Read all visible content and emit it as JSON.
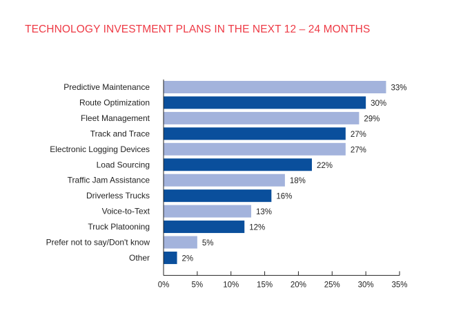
{
  "chart_data": {
    "type": "bar",
    "orientation": "horizontal",
    "title": "TECHNOLOGY INVESTMENT PLANS IN THE NEXT 12 – 24 MONTHS",
    "xlabel": "",
    "ylabel": "",
    "xlim": [
      0,
      35
    ],
    "xticks": [
      0,
      5,
      10,
      15,
      20,
      25,
      30,
      35
    ],
    "xtick_labels": [
      "0%",
      "5%",
      "10%",
      "15%",
      "20%",
      "25%",
      "30%",
      "35%"
    ],
    "grid": false,
    "legend": null,
    "categories": [
      "Predictive Maintenance",
      "Route Optimization",
      "Fleet Management",
      "Track and Trace",
      "Electronic Logging Devices",
      "Load Sourcing",
      "Traffic Jam Assistance",
      "Driverless Trucks",
      "Voice-to-Text",
      "Truck Platooning",
      "Prefer not to say/Don't know",
      "Other"
    ],
    "values": [
      33,
      30,
      29,
      27,
      27,
      22,
      18,
      16,
      13,
      12,
      5,
      2
    ],
    "value_labels": [
      "33%",
      "30%",
      "29%",
      "27%",
      "27%",
      "22%",
      "18%",
      "16%",
      "13%",
      "12%",
      "5%",
      "2%"
    ],
    "colors": {
      "light_bar": "#a3b3dc",
      "dark_bar": "#0a4f9c",
      "title": "#ee3a45",
      "axis": "#222222"
    }
  }
}
